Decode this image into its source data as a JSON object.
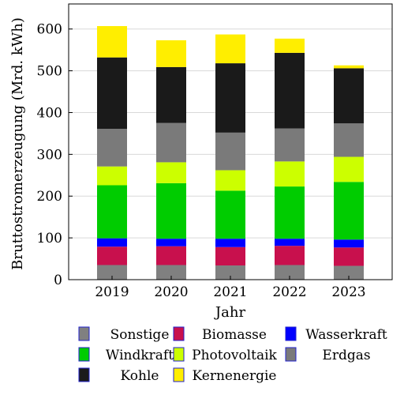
{
  "chart_data": {
    "type": "bar",
    "stacked": true,
    "xlabel": "Jahr",
    "ylabel": "Bruttostromerzeugung (Mrd. kWh)",
    "ylim": [
      0,
      660
    ],
    "yticks": [
      0,
      100,
      200,
      300,
      400,
      500,
      600
    ],
    "grid": true,
    "legend_position": "below",
    "categories": [
      "2019",
      "2020",
      "2021",
      "2022",
      "2023"
    ],
    "series": [
      {
        "name": "Sonstige",
        "color": "#808080",
        "values": [
          35,
          35,
          34,
          35,
          33
        ]
      },
      {
        "name": "Biomasse",
        "color": "#c8104d",
        "values": [
          44,
          45,
          44,
          46,
          44
        ]
      },
      {
        "name": "Wasserkraft",
        "color": "#0000ff",
        "values": [
          20,
          18,
          20,
          17,
          19
        ]
      },
      {
        "name": "Windkraft",
        "color": "#00cc00",
        "values": [
          127,
          133,
          115,
          125,
          138
        ]
      },
      {
        "name": "Photovoltaik",
        "color": "#ccff00",
        "values": [
          45,
          50,
          49,
          60,
          60
        ]
      },
      {
        "name": "Erdgas",
        "color": "#7a7a7a",
        "values": [
          90,
          94,
          90,
          79,
          80
        ]
      },
      {
        "name": "Kohle",
        "color": "#1a1a1a",
        "values": [
          171,
          134,
          166,
          181,
          132
        ]
      },
      {
        "name": "Kernenergie",
        "color": "#ffee00",
        "values": [
          75,
          64,
          69,
          34,
          7
        ]
      }
    ]
  },
  "legend_rows": [
    [
      "Sonstige",
      "Biomasse",
      "Wasserkraft"
    ],
    [
      "Windkraft",
      "Photovoltaik",
      "Erdgas"
    ],
    [
      "Kohle",
      "Kernenergie"
    ]
  ]
}
